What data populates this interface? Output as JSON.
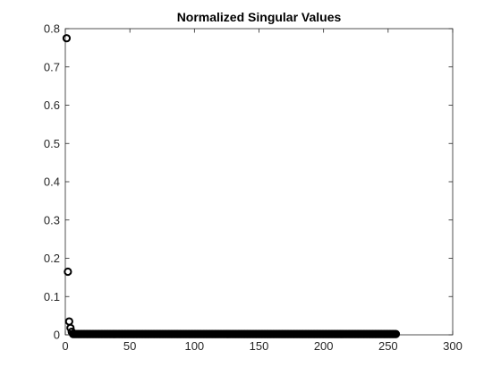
{
  "chart_data": {
    "type": "scatter",
    "title": "Normalized Singular Values",
    "xlabel": "",
    "ylabel": "",
    "xlim": [
      0,
      300
    ],
    "ylim": [
      0,
      0.8
    ],
    "xticks": [
      0,
      50,
      100,
      150,
      200,
      250,
      300
    ],
    "yticks": [
      0,
      0.1,
      0.2,
      0.3,
      0.4,
      0.5,
      0.6,
      0.7,
      0.8
    ],
    "xtick_labels": [
      "0",
      "50",
      "100",
      "150",
      "200",
      "250",
      "300"
    ],
    "ytick_labels": [
      "0",
      "0.1",
      "0.2",
      "0.3",
      "0.4",
      "0.5",
      "0.6",
      "0.7",
      "0.8"
    ],
    "grid": false,
    "marker": "circle-open",
    "marker_color": "#000000",
    "series": [
      {
        "x": [
          1,
          2,
          3,
          4,
          5
        ],
        "y": [
          0.775,
          0.165,
          0.035,
          0.018,
          0.008
        ],
        "tail": {
          "x_start": 6,
          "x_end": 256,
          "y": 0.002
        }
      }
    ]
  }
}
